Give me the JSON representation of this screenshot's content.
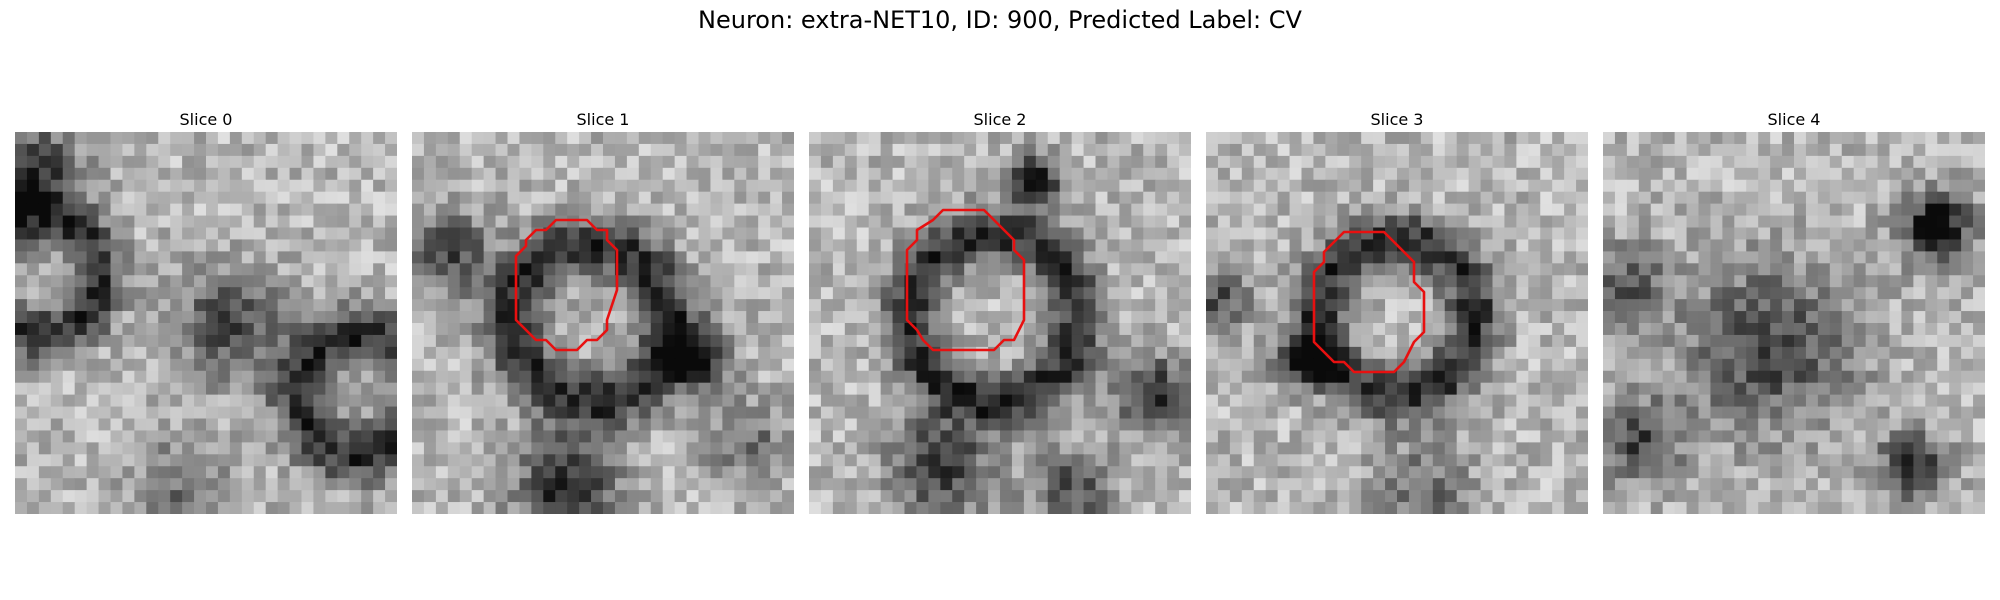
{
  "figure": {
    "title": "Neuron: extra-NET10, ID: 900, Predicted Label: CV"
  },
  "panels": [
    {
      "title": "Slice 0",
      "has_contour": false
    },
    {
      "title": "Slice 1",
      "has_contour": true
    },
    {
      "title": "Slice 2",
      "has_contour": true
    },
    {
      "title": "Slice 3",
      "has_contour": true
    },
    {
      "title": "Slice 4",
      "has_contour": false
    }
  ],
  "colors": {
    "contour": "#e81010",
    "background": "#ffffff"
  },
  "colormap": "gray"
}
